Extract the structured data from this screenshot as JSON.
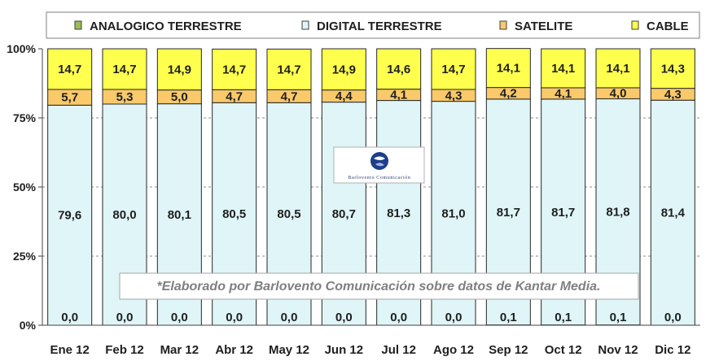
{
  "chart_data": {
    "type": "bar",
    "stacked": true,
    "percent_axis": true,
    "categories": [
      "Ene 12",
      "Feb 12",
      "Mar 12",
      "Abr 12",
      "May 12",
      "Jun 12",
      "Jul 12",
      "Ago 12",
      "Sep 12",
      "Oct 12",
      "Nov 12",
      "Dic 12"
    ],
    "series": [
      {
        "name": "ANALOGICO TERRESTRE",
        "color": "#9bbb59",
        "values": [
          0.0,
          0.0,
          0.0,
          0.0,
          0.0,
          0.0,
          0.0,
          0.0,
          0.1,
          0.1,
          0.1,
          0.0
        ],
        "labels": [
          "0,0",
          "0,0",
          "0,0",
          "0,0",
          "0,0",
          "0,0",
          "0,0",
          "0,0",
          "0,1",
          "0,1",
          "0,1",
          "0,0"
        ]
      },
      {
        "name": "DIGITAL TERRESTRE",
        "color": "#dff5f8",
        "values": [
          79.6,
          80.0,
          80.1,
          80.5,
          80.5,
          80.7,
          81.3,
          81.0,
          81.7,
          81.7,
          81.8,
          81.4
        ],
        "labels": [
          "79,6",
          "80,0",
          "80,1",
          "80,5",
          "80,5",
          "80,7",
          "81,3",
          "81,0",
          "81,7",
          "81,7",
          "81,8",
          "81,4"
        ]
      },
      {
        "name": "SATELITE",
        "color": "#f9c96a",
        "values": [
          5.7,
          5.3,
          5.0,
          4.7,
          4.7,
          4.4,
          4.1,
          4.3,
          4.2,
          4.1,
          4.0,
          4.3
        ],
        "labels": [
          "5,7",
          "5,3",
          "5,0",
          "4,7",
          "4,7",
          "4,4",
          "4,1",
          "4,3",
          "4,2",
          "4,1",
          "4,0",
          "4,3"
        ]
      },
      {
        "name": "CABLE",
        "color": "#ffff4d",
        "values": [
          14.7,
          14.7,
          14.9,
          14.7,
          14.7,
          14.9,
          14.6,
          14.7,
          14.1,
          14.1,
          14.1,
          14.3
        ],
        "labels": [
          "14,7",
          "14,7",
          "14,9",
          "14,7",
          "14,7",
          "14,9",
          "14,6",
          "14,7",
          "14,1",
          "14,1",
          "14,1",
          "14,3"
        ]
      }
    ],
    "y_ticks": [
      "0%",
      "25%",
      "50%",
      "75%",
      "100%"
    ],
    "ylim": [
      0,
      100
    ],
    "legend_position": "top",
    "grid": "dashed",
    "annotation": "*Elaborado por Barlovento Comunicación sobre datos de Kantar Media.",
    "watermark_text": "Barlovento Comunicación"
  }
}
